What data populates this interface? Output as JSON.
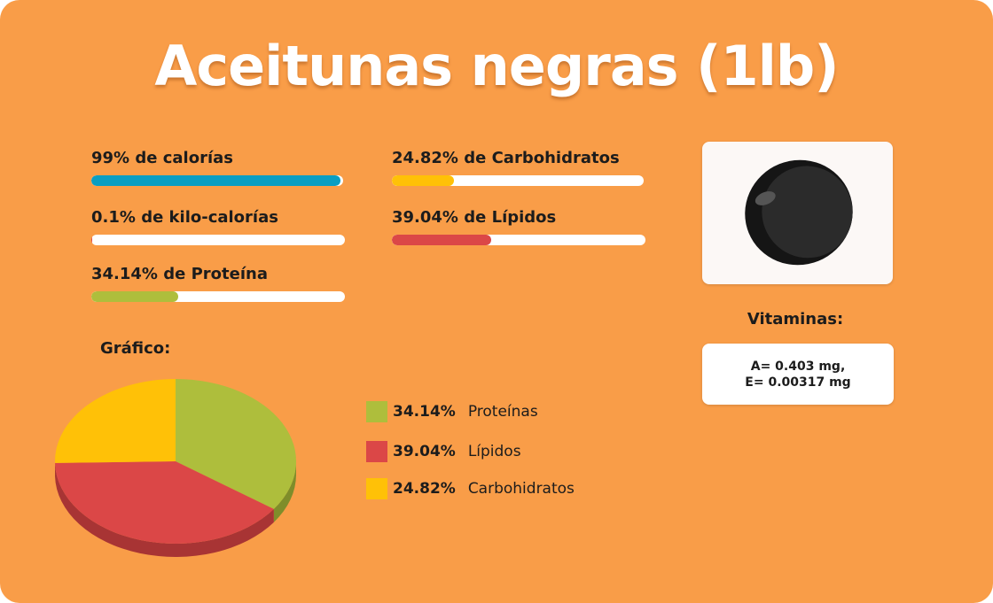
{
  "title": "Aceitunas negras (1lb)",
  "stats": [
    {
      "label": "99% de calorías",
      "value": 99,
      "color": "#0a9ec2"
    },
    {
      "label": "0.1% de kilo-calorías",
      "value": 0.1,
      "color": "#e04646"
    },
    {
      "label": "34.14% de Proteína",
      "value": 34.14,
      "color": "#aebe3c"
    },
    {
      "label": "24.82% de Carbohidratos",
      "value": 24.82,
      "color": "#ffc107"
    },
    {
      "label": "39.04% de Lípidos",
      "value": 39.04,
      "color": "#db4747"
    }
  ],
  "image": {
    "icon": "black-olive-icon"
  },
  "vitamins": {
    "title": "Vitaminas:",
    "line1": "A= 0.403 mg,",
    "line2": "E= 0.00317 mg"
  },
  "chart_title": "Gráfico:",
  "chart_data": {
    "type": "pie",
    "title": "Gráfico:",
    "categories": [
      "Proteínas",
      "Lípidos",
      "Carbohidratos"
    ],
    "values": [
      34.14,
      39.04,
      24.82
    ],
    "labels": [
      "34.14%",
      "39.04%",
      "24.82%"
    ],
    "colors": [
      "#aebe3c",
      "#db4747",
      "#ffc107"
    ],
    "depth_colors": [
      "#7f8d2a",
      "#a83434",
      "#c99700"
    ]
  }
}
